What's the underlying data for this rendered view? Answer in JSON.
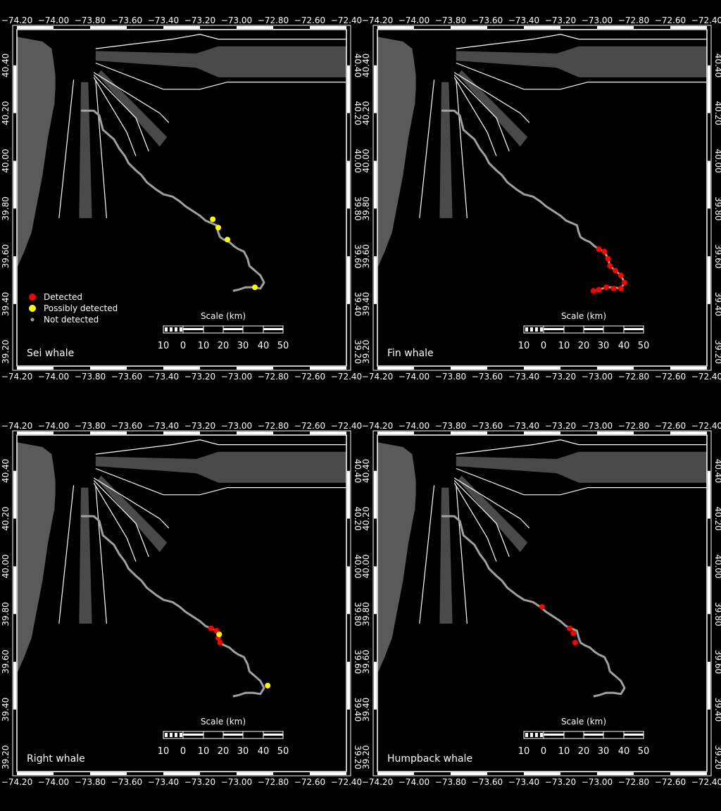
{
  "x_ticks": [
    "−74.20",
    "−74.00",
    "−73.80",
    "−73.60",
    "−73.40",
    "−73.20",
    "−73.00",
    "−72.80",
    "−72.60",
    "−72.40"
  ],
  "y_ticks": [
    "40.40",
    "40.20",
    "40.00",
    "39.80",
    "39.60",
    "39.40",
    "39.20"
  ],
  "legend": {
    "detected": "Detected",
    "possibly": "Possibly detected",
    "not": "Not detected"
  },
  "scale": {
    "title": "Scale (km)",
    "labels": [
      "10",
      "0",
      "10",
      "20",
      "30",
      "40",
      "50"
    ]
  },
  "colors": {
    "detected": "#ff0000",
    "possibly": "#ffff00",
    "not_detected": "#a0a0a0",
    "land": "#5a5a5a",
    "lane": "#4a4a4a",
    "background": "#000000"
  },
  "panels": [
    {
      "label": "Sei whale",
      "show_legend": true,
      "detections": [
        {
          "lon": -73.13,
          "lat": 39.755,
          "status": "possibly"
        },
        {
          "lon": -73.1,
          "lat": 39.72,
          "status": "possibly"
        },
        {
          "lon": -73.05,
          "lat": 39.67,
          "status": "possibly"
        },
        {
          "lon": -72.9,
          "lat": 39.47,
          "status": "possibly"
        }
      ]
    },
    {
      "label": "Fin whale",
      "show_legend": false,
      "detections": [
        {
          "lon": -72.99,
          "lat": 39.63,
          "status": "detected"
        },
        {
          "lon": -72.96,
          "lat": 39.62,
          "status": "detected"
        },
        {
          "lon": -72.94,
          "lat": 39.59,
          "status": "detected"
        },
        {
          "lon": -72.93,
          "lat": 39.56,
          "status": "detected"
        },
        {
          "lon": -72.9,
          "lat": 39.54,
          "status": "detected"
        },
        {
          "lon": -72.87,
          "lat": 39.52,
          "status": "detected"
        },
        {
          "lon": -72.85,
          "lat": 39.49,
          "status": "detected"
        },
        {
          "lon": -72.87,
          "lat": 39.465,
          "status": "detected"
        },
        {
          "lon": -72.91,
          "lat": 39.465,
          "status": "detected"
        },
        {
          "lon": -72.95,
          "lat": 39.47,
          "status": "detected"
        },
        {
          "lon": -72.99,
          "lat": 39.46,
          "status": "detected"
        },
        {
          "lon": -73.02,
          "lat": 39.455,
          "status": "detected"
        }
      ]
    },
    {
      "label": "Right whale",
      "show_legend": false,
      "detections": [
        {
          "lon": -73.14,
          "lat": 39.74,
          "status": "detected"
        },
        {
          "lon": -73.11,
          "lat": 39.73,
          "status": "detected"
        },
        {
          "lon": -73.1,
          "lat": 39.7,
          "status": "detected"
        },
        {
          "lon": -73.09,
          "lat": 39.68,
          "status": "detected"
        },
        {
          "lon": -73.095,
          "lat": 39.715,
          "status": "possibly"
        },
        {
          "lon": -72.83,
          "lat": 39.5,
          "status": "possibly"
        }
      ]
    },
    {
      "label": "Humpback whale",
      "show_legend": false,
      "detections": [
        {
          "lon": -73.3,
          "lat": 39.83,
          "status": "detected"
        },
        {
          "lon": -73.15,
          "lat": 39.74,
          "status": "detected"
        },
        {
          "lon": -73.13,
          "lat": 39.72,
          "status": "detected"
        },
        {
          "lon": -73.12,
          "lat": 39.68,
          "status": "detected"
        }
      ]
    }
  ]
}
